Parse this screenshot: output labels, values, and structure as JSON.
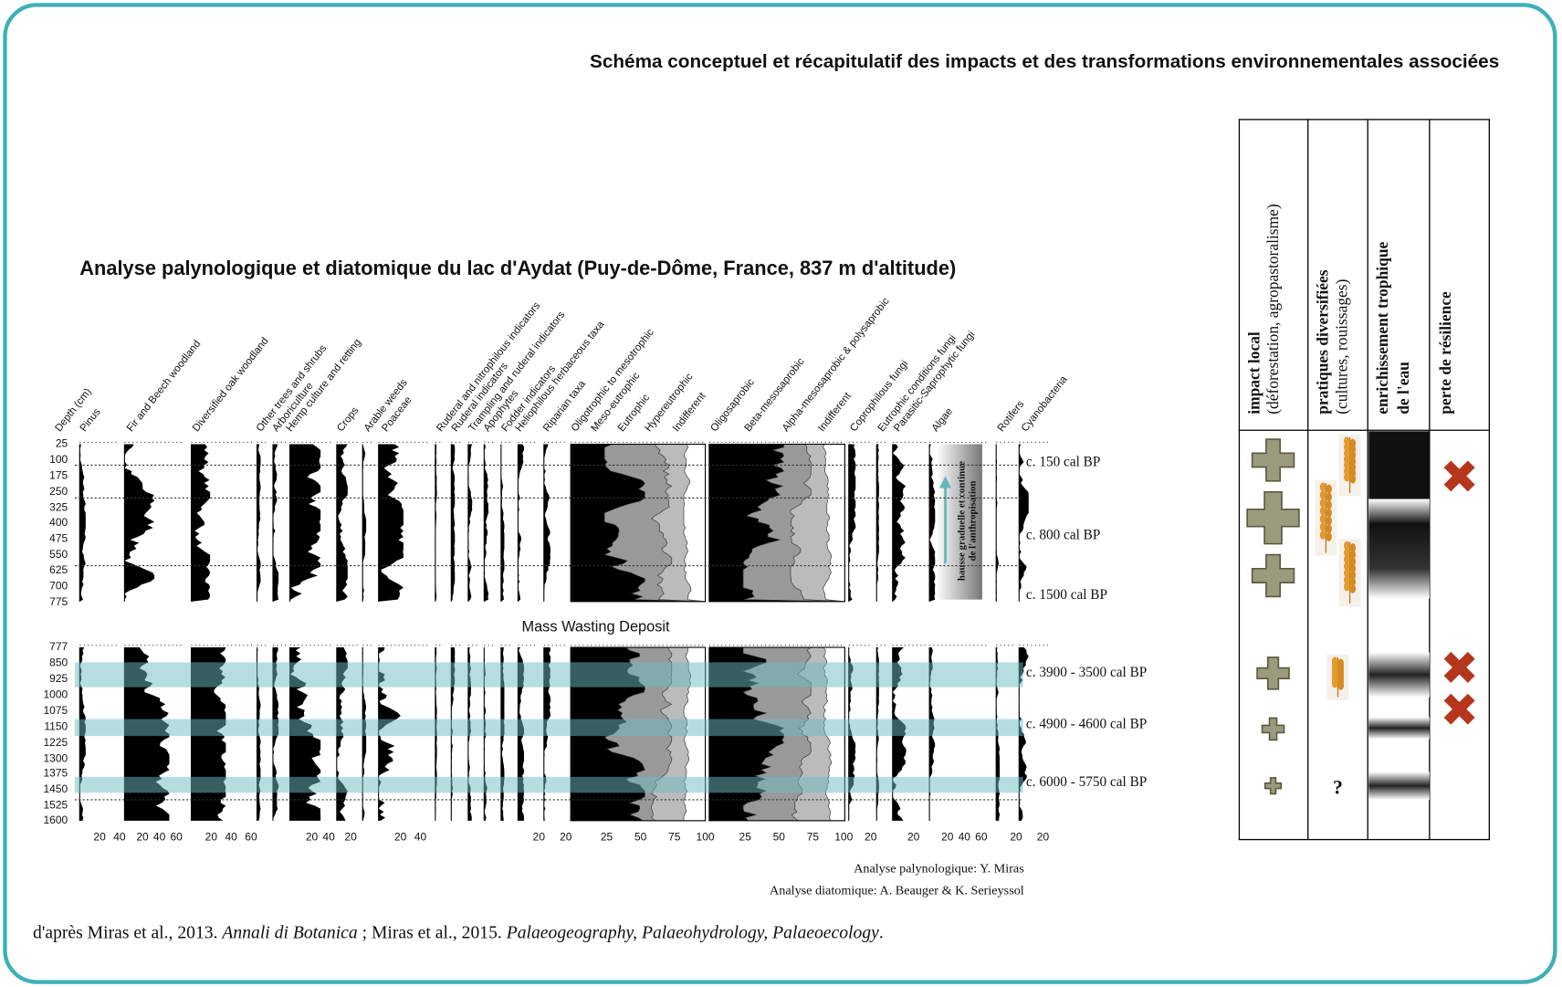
{
  "header": {
    "title": "Schéma conceptuel et récapitulatif des impacts et des transformations environnementales associées"
  },
  "figure": {
    "title": "Analyse palynologique et diatomique du lac d'Aydat (Puy-de-Dôme, France, 837 m d'altitude)",
    "columns": [
      "Depth (cm)",
      "Pinus",
      "Fir and Beech woodland",
      "Diversified oak woodland",
      "Other trees and shrubs",
      "Arboriculture",
      "Hemp culture and retting",
      "Crops",
      "Arable weeds",
      "Poaceae",
      "Ruderal and nitrophilous indicators",
      "Ruderal indicators",
      "Trampling and ruderal indicators",
      "Apophytes",
      "Fodder indicators",
      "Heliophilous herbaceous taxa",
      "Riparian taxa",
      "Oligotrophic to mesotrophic",
      "Meso-eutrophic",
      "Eutrophic",
      "Hypereutrophic",
      "Indifferent",
      "Oligosaprobic",
      "Beta-mesosaprobic",
      "Alpha-mesosaprobic & polysaprobic",
      "Indifferent",
      "Coprophilous fungi",
      "Eutrophic conditions fungi",
      "Parasitic-Saprophytic fungi",
      "Algae",
      "Rotifers",
      "Cyanobacteria"
    ],
    "depth_upper": [
      25,
      100,
      175,
      250,
      325,
      400,
      475,
      550,
      625,
      700,
      775
    ],
    "depth_lower": [
      777,
      850,
      925,
      1000,
      1075,
      1150,
      1225,
      1300,
      1375,
      1450,
      1525,
      1600
    ],
    "hiatus": "Mass Wasting Deposit",
    "zones_upper": [
      "c. 150 cal BP",
      "c. 800 cal BP",
      "c. 1500 cal BP"
    ],
    "zones_lower": [
      "c. 3900 - 3500 cal BP",
      "c. 4900 - 4600 cal BP",
      "c. 6000 - 5750 cal BP"
    ],
    "axis_ticks": [
      [
        20,
        40
      ],
      [
        20,
        40,
        60
      ],
      [
        20,
        40,
        60
      ],
      [
        20,
        40
      ],
      [
        20
      ],
      [
        20,
        40
      ],
      [
        20
      ],
      [
        20
      ],
      [
        25,
        50,
        75,
        100
      ],
      [
        25,
        50,
        75,
        100
      ],
      [
        20
      ],
      [
        20
      ],
      [
        20,
        40,
        60
      ],
      [
        20
      ],
      [
        20
      ]
    ],
    "annotation": [
      "hausse graduelle et continue",
      "de l'anthropisation"
    ],
    "credits": [
      "Analyse palynologique: Y. Miras",
      "Analyse diatomique: A. Beauger & K. Serieyssol"
    ]
  },
  "citation": [
    "d'après Miras et al., 2013. ",
    "Annali di Botanica",
    " ; Miras et al., 2015. ",
    "Palaeogeography, Palaeohydrology, Palaeoecology",
    "."
  ],
  "table": {
    "headers": [
      {
        "title": "impact local",
        "subtitle": "(déforestation, agropastoralisme)"
      },
      {
        "title": "pratiques diversifiées",
        "subtitle": "(cultures, rouissages)"
      },
      {
        "title": "enrichissement trophique",
        "subtitle": "de l'eau"
      },
      {
        "title": "perte de résilience"
      }
    ],
    "question": "?"
  }
}
